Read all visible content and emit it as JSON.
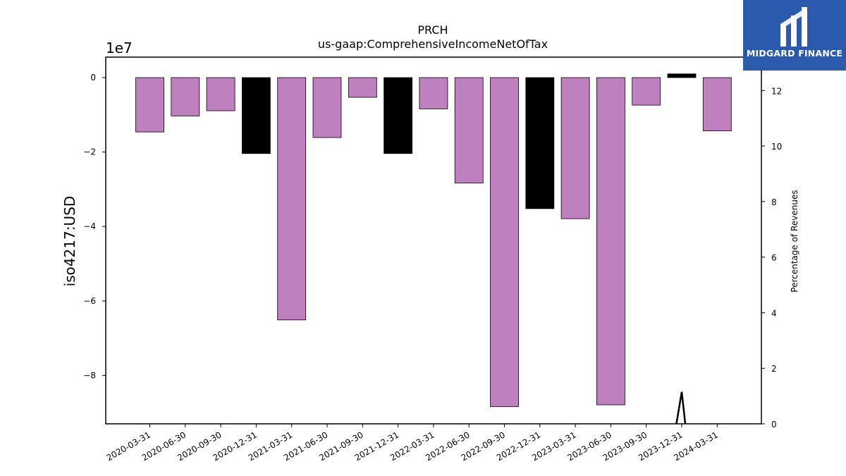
{
  "chart_data": {
    "type": "bar",
    "title": "PRCH",
    "subtitle": "us-gaap:ComprehensiveIncomeNetOfTax",
    "ylabel": "iso4217:USD",
    "y_multiplier_label": "1e7",
    "y2label": "Percentage of Revenues",
    "categories": [
      "2020-03-31",
      "2020-06-30",
      "2020-09-30",
      "2020-12-31",
      "2021-03-31",
      "2021-06-30",
      "2021-09-30",
      "2021-12-31",
      "2022-03-31",
      "2022-06-30",
      "2022-09-30",
      "2022-12-31",
      "2023-03-31",
      "2023-06-30",
      "2023-09-30",
      "2023-12-31",
      "2024-03-31"
    ],
    "series": [
      {
        "values": [
          -14600000,
          -10300000,
          -8900000,
          -20400000,
          -65100000,
          -16100000,
          -5300000,
          -20400000,
          -8400000,
          -28300000,
          -88400000,
          -35200000,
          -37900000,
          -87900000,
          -7400000,
          1000000,
          -14300000
        ],
        "colors": [
          "#bf80bf",
          "#bf80bf",
          "#bf80bf",
          "#000000",
          "#bf80bf",
          "#bf80bf",
          "#bf80bf",
          "#000000",
          "#bf80bf",
          "#bf80bf",
          "#bf80bf",
          "#000000",
          "#bf80bf",
          "#bf80bf",
          "#bf80bf",
          "#000000",
          "#bf80bf"
        ]
      },
      {
        "type": "line",
        "axis": "right",
        "x_range": [
          "2023-09-30",
          "2023-12-31"
        ],
        "points": [
          [
            14.85,
            0
          ],
          [
            15.0,
            1.15
          ],
          [
            15.1,
            0
          ]
        ]
      }
    ],
    "ylim": [
      -93000000,
      5500000
    ],
    "yticks": [
      0,
      -20000000,
      -40000000,
      -60000000,
      -80000000
    ],
    "ytick_labels": [
      "0",
      "−2",
      "−4",
      "−6",
      "−8"
    ],
    "y2lim": [
      0,
      13.2
    ],
    "y2ticks": [
      0,
      2,
      4,
      6,
      8,
      10,
      12
    ],
    "y2tick_labels": [
      "0",
      "2",
      "4",
      "6",
      "8",
      "10",
      "12"
    ],
    "grid": false,
    "colors": {
      "default": "#bf80bf",
      "highlight": "#000000"
    }
  },
  "logo": {
    "text": "MIDGARD FINANCE",
    "icon": "midgard-logo-icon"
  }
}
